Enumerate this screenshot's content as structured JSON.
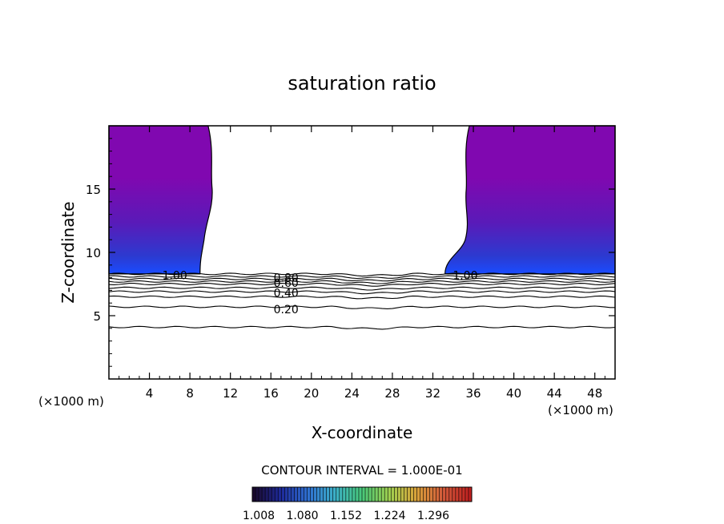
{
  "chart_data": {
    "type": "contour",
    "title": "saturation ratio",
    "xlabel": "X-coordinate",
    "ylabel": "Z-coordinate",
    "x_unit_left": "(×1000 m)",
    "x_unit_right": "(×1000 m)",
    "xlim": [
      0,
      50
    ],
    "ylim": [
      0,
      20
    ],
    "x_ticks": [
      4,
      8,
      12,
      16,
      20,
      24,
      28,
      32,
      36,
      40,
      44,
      48
    ],
    "x_tick_labels": [
      "4",
      "8",
      "12",
      "16",
      "20",
      "24",
      "28",
      "32",
      "36",
      "40",
      "44",
      "48"
    ],
    "y_ticks": [
      5,
      10,
      15
    ],
    "y_tick_labels": [
      "5",
      "10",
      "15"
    ],
    "contour_interval_text": "CONTOUR INTERVAL = 1.000E-01",
    "contour_lines": [
      {
        "level": 1.0,
        "label": "1.00",
        "z": 8.3
      },
      {
        "level": 0.9,
        "label": "",
        "z": 8.1
      },
      {
        "level": 0.8,
        "label": "0.80",
        "z": 7.9
      },
      {
        "level": 0.7,
        "label": "",
        "z": 7.7
      },
      {
        "level": 0.6,
        "label": "0.60",
        "z": 7.5
      },
      {
        "level": 0.5,
        "label": "",
        "z": 7.2
      },
      {
        "level": 0.4,
        "label": "0.40",
        "z": 6.9
      },
      {
        "level": 0.3,
        "label": "",
        "z": 6.5
      },
      {
        "level": 0.2,
        "label": "0.20",
        "z": 5.7
      },
      {
        "level": 0.1,
        "label": "",
        "z": 4.1
      }
    ],
    "inline_labels": [
      {
        "text": "1.00",
        "x": 6.5,
        "z": 8.2
      },
      {
        "text": "1.00",
        "x": 35.2,
        "z": 8.2
      },
      {
        "text": "0.80",
        "x": 17.5,
        "z": 8.0
      },
      {
        "text": "0.60",
        "x": 17.5,
        "z": 7.6
      },
      {
        "text": "0.40",
        "x": 17.5,
        "z": 6.8
      },
      {
        "text": "0.20",
        "x": 17.5,
        "z": 5.5
      }
    ],
    "supersaturated_regions": [
      {
        "x_from": 0,
        "x_to": 9.0,
        "z_from": 8.3,
        "z_to": 20,
        "edge_x_at_top": 9.8
      },
      {
        "x_from": 33.2,
        "x_to": 50,
        "z_from": 8.3,
        "z_to": 20,
        "edge_x_at_top": 35.6
      }
    ],
    "colorbar": {
      "tick_labels": [
        "1.008",
        "1.080",
        "1.152",
        "1.224",
        "1.296"
      ],
      "colors": [
        "#1a0a2e",
        "#1e2a9a",
        "#2f6fd0",
        "#3cb0c8",
        "#48c97a",
        "#9fd050",
        "#d9a23a",
        "#d25a3a",
        "#c02020"
      ]
    },
    "colors": {
      "upper": "#8008b0",
      "mid": "#5a1ab8",
      "low": "#2c3ad0",
      "base": "#1a4cff"
    }
  }
}
